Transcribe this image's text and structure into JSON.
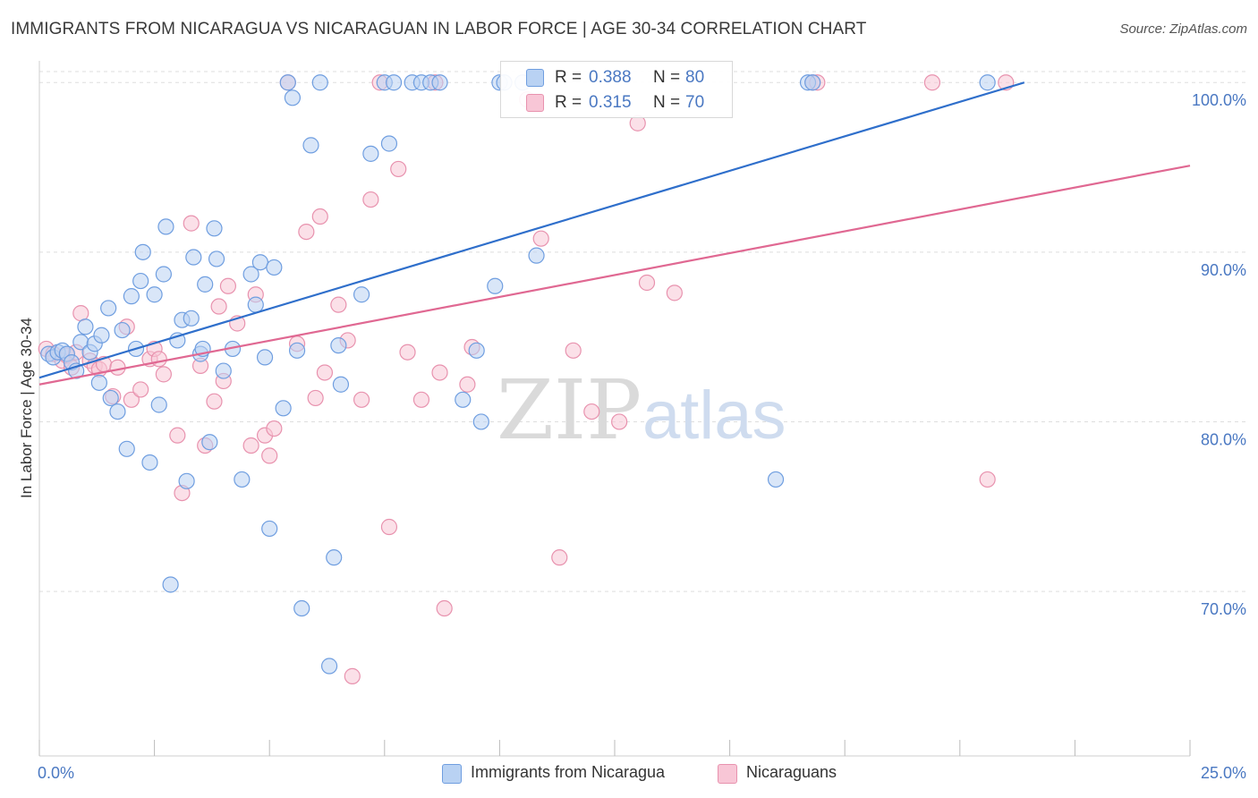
{
  "header": {
    "title": "IMMIGRANTS FROM NICARAGUA VS NICARAGUAN IN LABOR FORCE | AGE 30-34 CORRELATION CHART",
    "source": "Source: ZipAtlas.com"
  },
  "watermark": {
    "zip": "ZIP",
    "atlas": "atlas"
  },
  "legend": {
    "rows": [
      {
        "r_label": "R =",
        "r_value": "0.388",
        "n_label": "N =",
        "n_value": "80"
      },
      {
        "r_label": "R =",
        "r_value": "0.315",
        "n_label": "N =",
        "n_value": "70"
      }
    ]
  },
  "bottom_legend": {
    "blue": "Immigrants from Nicaragua",
    "pink": "Nicaraguans"
  },
  "colors": {
    "blue_fill": "#b9d2f3",
    "blue_stroke": "#6f9ee0",
    "blue_line": "#2f6fcb",
    "pink_fill": "#f8c6d6",
    "pink_stroke": "#e892ae",
    "pink_line": "#e06892",
    "tick_text": "#4a78c2",
    "grid": "#dedede"
  },
  "chart_data": {
    "type": "scatter",
    "title": "IMMIGRANTS FROM NICARAGUA VS NICARAGUAN IN LABOR FORCE | AGE 30-34 CORRELATION CHART",
    "xlabel": "",
    "ylabel": "In Labor Force | Age 30-34",
    "xlim": [
      0,
      25
    ],
    "ylim": [
      60.3,
      101.7
    ],
    "x_tick_labels": [
      {
        "value": 0,
        "label": "0.0%"
      },
      {
        "value": 25,
        "label": "25.0%"
      }
    ],
    "y_tick_labels": [
      {
        "value": 70,
        "label": "70.0%"
      },
      {
        "value": 80,
        "label": "80.0%"
      },
      {
        "value": 90,
        "label": "90.0%"
      },
      {
        "value": 100,
        "label": "100.0%"
      }
    ],
    "x_minor_ticks": [
      0,
      2.5,
      5,
      7.5,
      10,
      12.5,
      15,
      17.5,
      20,
      22.5,
      25
    ],
    "grid": true,
    "legend_position": "top-center",
    "series": [
      {
        "name": "Immigrants from Nicaragua",
        "color": "blue",
        "r": 0.388,
        "n": 80,
        "trend": {
          "x": [
            0,
            21.4
          ],
          "y": [
            82.6,
            100
          ]
        },
        "points": [
          [
            0.2,
            84.0
          ],
          [
            0.3,
            83.8
          ],
          [
            0.4,
            84.1
          ],
          [
            0.5,
            84.2
          ],
          [
            0.6,
            84.0
          ],
          [
            0.7,
            83.5
          ],
          [
            0.8,
            83.0
          ],
          [
            0.9,
            84.7
          ],
          [
            1.0,
            85.6
          ],
          [
            1.1,
            84.1
          ],
          [
            1.2,
            84.6
          ],
          [
            1.3,
            82.3
          ],
          [
            1.35,
            85.1
          ],
          [
            1.5,
            86.7
          ],
          [
            1.55,
            81.4
          ],
          [
            1.7,
            80.6
          ],
          [
            1.8,
            85.4
          ],
          [
            1.9,
            78.4
          ],
          [
            2.0,
            87.4
          ],
          [
            2.1,
            84.3
          ],
          [
            2.2,
            88.3
          ],
          [
            2.25,
            90.0
          ],
          [
            2.4,
            77.6
          ],
          [
            2.5,
            87.5
          ],
          [
            2.6,
            81.0
          ],
          [
            2.7,
            88.7
          ],
          [
            2.75,
            91.5
          ],
          [
            2.85,
            70.4
          ],
          [
            3.0,
            84.8
          ],
          [
            3.1,
            86.0
          ],
          [
            3.2,
            76.5
          ],
          [
            3.3,
            86.1
          ],
          [
            3.35,
            89.7
          ],
          [
            3.5,
            84.0
          ],
          [
            3.55,
            84.3
          ],
          [
            3.6,
            88.1
          ],
          [
            3.7,
            78.8
          ],
          [
            3.8,
            91.4
          ],
          [
            3.85,
            89.6
          ],
          [
            4.0,
            83.0
          ],
          [
            4.2,
            84.3
          ],
          [
            4.4,
            76.6
          ],
          [
            4.6,
            88.7
          ],
          [
            4.7,
            86.9
          ],
          [
            4.8,
            89.4
          ],
          [
            4.9,
            83.8
          ],
          [
            5.0,
            73.7
          ],
          [
            5.1,
            89.1
          ],
          [
            5.3,
            80.8
          ],
          [
            5.4,
            100.0
          ],
          [
            5.5,
            99.1
          ],
          [
            5.6,
            84.2
          ],
          [
            5.7,
            69.0
          ],
          [
            5.9,
            96.3
          ],
          [
            6.1,
            100.0
          ],
          [
            6.3,
            65.6
          ],
          [
            6.4,
            72.0
          ],
          [
            6.5,
            84.5
          ],
          [
            6.55,
            82.2
          ],
          [
            7.0,
            87.5
          ],
          [
            7.2,
            95.8
          ],
          [
            7.5,
            100.0
          ],
          [
            7.6,
            96.4
          ],
          [
            7.7,
            100.0
          ],
          [
            8.1,
            100.0
          ],
          [
            8.3,
            100.0
          ],
          [
            8.5,
            100.0
          ],
          [
            8.7,
            100.0
          ],
          [
            9.2,
            81.3
          ],
          [
            9.5,
            84.2
          ],
          [
            9.6,
            80.0
          ],
          [
            9.9,
            88.0
          ],
          [
            10.0,
            100.0
          ],
          [
            10.1,
            100.0
          ],
          [
            10.5,
            100.0
          ],
          [
            10.8,
            89.8
          ],
          [
            16.0,
            76.6
          ],
          [
            16.7,
            100.0
          ],
          [
            16.8,
            100.0
          ],
          [
            20.6,
            100.0
          ]
        ]
      },
      {
        "name": "Nicaraguans",
        "color": "pink",
        "r": 0.315,
        "n": 70,
        "trend": {
          "x": [
            0,
            25
          ],
          "y": [
            82.2,
            95.1
          ]
        },
        "points": [
          [
            0.15,
            84.3
          ],
          [
            0.3,
            84.0
          ],
          [
            0.5,
            83.6
          ],
          [
            0.6,
            83.9
          ],
          [
            0.7,
            83.2
          ],
          [
            0.8,
            84.1
          ],
          [
            0.9,
            86.4
          ],
          [
            1.1,
            83.6
          ],
          [
            1.2,
            83.3
          ],
          [
            1.3,
            83.1
          ],
          [
            1.4,
            83.4
          ],
          [
            1.6,
            81.5
          ],
          [
            1.7,
            83.2
          ],
          [
            1.9,
            85.6
          ],
          [
            2.0,
            81.3
          ],
          [
            2.2,
            81.9
          ],
          [
            2.4,
            83.7
          ],
          [
            2.5,
            84.3
          ],
          [
            2.6,
            83.7
          ],
          [
            2.7,
            82.8
          ],
          [
            3.0,
            79.2
          ],
          [
            3.1,
            75.8
          ],
          [
            3.3,
            91.7
          ],
          [
            3.5,
            83.3
          ],
          [
            3.6,
            78.6
          ],
          [
            3.8,
            81.2
          ],
          [
            3.9,
            86.8
          ],
          [
            4.0,
            82.4
          ],
          [
            4.1,
            88.0
          ],
          [
            4.3,
            85.8
          ],
          [
            4.6,
            78.6
          ],
          [
            4.7,
            87.5
          ],
          [
            4.9,
            79.2
          ],
          [
            5.0,
            78.0
          ],
          [
            5.1,
            79.6
          ],
          [
            5.4,
            100.0
          ],
          [
            5.6,
            84.6
          ],
          [
            5.8,
            91.2
          ],
          [
            6.0,
            81.4
          ],
          [
            6.1,
            92.1
          ],
          [
            6.2,
            82.9
          ],
          [
            6.5,
            86.9
          ],
          [
            6.7,
            84.8
          ],
          [
            7.0,
            81.3
          ],
          [
            7.2,
            93.1
          ],
          [
            7.4,
            100.0
          ],
          [
            7.6,
            73.8
          ],
          [
            7.8,
            94.9
          ],
          [
            8.0,
            84.1
          ],
          [
            8.3,
            81.3
          ],
          [
            8.6,
            100.0
          ],
          [
            8.7,
            82.9
          ],
          [
            8.8,
            69.0
          ],
          [
            9.3,
            82.2
          ],
          [
            9.4,
            84.4
          ],
          [
            10.6,
            99.0
          ],
          [
            10.9,
            90.8
          ],
          [
            11.3,
            72.0
          ],
          [
            11.6,
            84.2
          ],
          [
            12.0,
            80.6
          ],
          [
            12.6,
            80.0
          ],
          [
            13.0,
            97.6
          ],
          [
            13.2,
            88.2
          ],
          [
            13.8,
            87.6
          ],
          [
            16.8,
            100.0
          ],
          [
            16.9,
            100.0
          ],
          [
            19.4,
            100.0
          ],
          [
            20.6,
            76.6
          ],
          [
            21.0,
            100.0
          ],
          [
            6.8,
            65.0
          ]
        ]
      }
    ]
  }
}
